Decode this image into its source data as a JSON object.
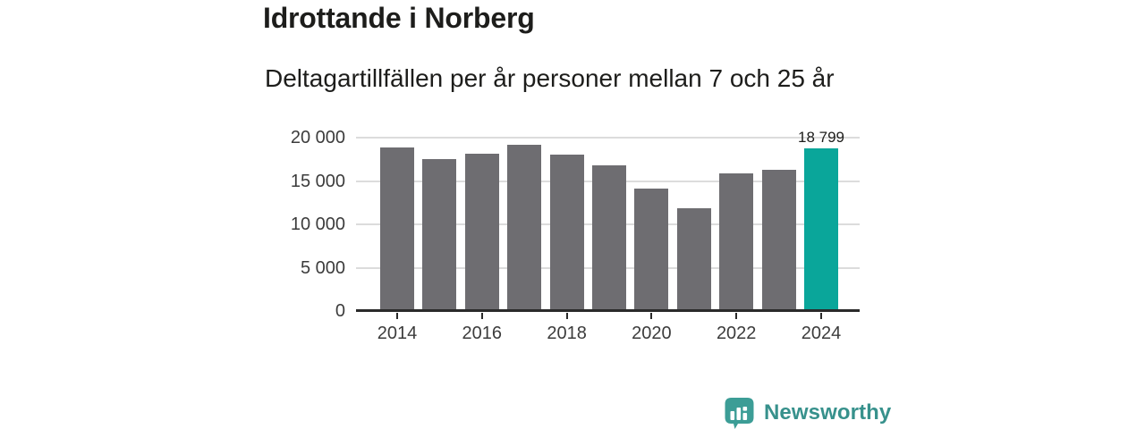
{
  "header": {
    "title": "Idrottande i Norberg",
    "subtitle": "Deltagartillfällen per år personer mellan 7 och 25 år"
  },
  "chart_data": {
    "type": "bar",
    "title": "Idrottande i Norberg",
    "subtitle": "Deltagartillfällen per år personer mellan 7 och 25 år",
    "categories": [
      "2014",
      "2015",
      "2016",
      "2017",
      "2018",
      "2019",
      "2020",
      "2021",
      "2022",
      "2023",
      "2024"
    ],
    "values": [
      18900,
      17500,
      18100,
      19200,
      18000,
      16800,
      14100,
      11900,
      15900,
      16300,
      18799
    ],
    "highlight": {
      "index": 10,
      "label": "18 799"
    },
    "xlabel": "",
    "ylabel": "",
    "ylim": [
      0,
      20000
    ],
    "grid": true,
    "legend": "none",
    "y_ticks": [
      {
        "value": 20000,
        "label": "20 000"
      },
      {
        "value": 15000,
        "label": "15 000"
      },
      {
        "value": 10000,
        "label": "10 000"
      },
      {
        "value": 5000,
        "label": "5 000"
      },
      {
        "value": 0,
        "label": "0"
      }
    ],
    "x_tick_labels": [
      "2014",
      "2016",
      "2018",
      "2020",
      "2022",
      "2024"
    ],
    "colors": {
      "bar": "#6e6d71",
      "highlight": "#0aa69a",
      "gridline": "#dcdcdc",
      "axis": "#2a2a2a",
      "tick_text": "#3c3c3c"
    }
  },
  "footer": {
    "brand": "Newsworthy",
    "brand_color": "#37918c",
    "logo_color": "#3c9d96",
    "logo_icon": "bar-chart-speech-bubble-icon"
  }
}
